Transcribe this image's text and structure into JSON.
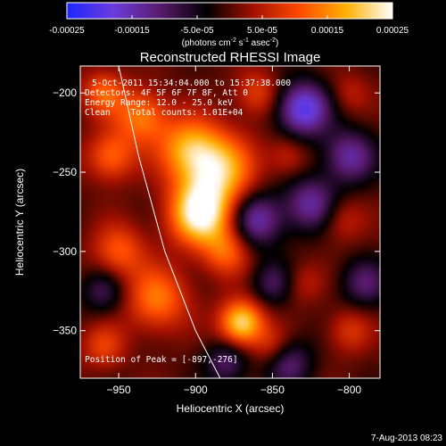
{
  "chart_data": {
    "type": "heatmap",
    "title": "Reconstructed RHESSI Image",
    "xlabel": "Heliocentric X (arcsec)",
    "ylabel": "Heliocentric Y (arcsec)",
    "xlim": [
      -975,
      -780
    ],
    "ylim": [
      -380,
      -183
    ],
    "x_ticks": [
      -950,
      -900,
      -850,
      -800
    ],
    "y_ticks": [
      -200,
      -250,
      -300,
      -350
    ],
    "colorbar": {
      "range": [
        -0.00025,
        0.00025
      ],
      "tick_values": [
        -0.00025,
        -0.00015,
        -5e-05,
        5e-05,
        0.00015,
        0.00025
      ],
      "tick_labels": [
        "-0.00025",
        "-0.00015",
        "-5.0e-05",
        "5.0e-05",
        "0.00015",
        "0.00025"
      ],
      "label": "(photons cm",
      "label_exp1": "-2",
      "label_mid": " s",
      "label_exp2": "-1",
      "label_tail": " asec",
      "label_exp3": "-2",
      "label_end": ")",
      "stops": [
        "#1e26ff",
        "#6a3cdc",
        "#5a1a6e",
        "#000000",
        "#a31000",
        "#ff4a00",
        "#ffb000",
        "#ffffff"
      ]
    },
    "annotations": {
      "time": "5-Oct-2011 15:34:04.000 to 15:37:38.000",
      "detectors": "Detectors: 4F 5F 6F 7F 8F, Att 0",
      "energy": "Energy Range: 12.0 - 25.0 keV",
      "method": "Clean    Total counts: 1.01E+04",
      "peak": "Position of Peak = [-897,-276]"
    },
    "limb_curve": [
      [
        -950,
        -183
      ],
      [
        -937,
        -240
      ],
      [
        -920,
        -300
      ],
      [
        -900,
        -350
      ],
      [
        -884,
        -380
      ]
    ],
    "sources": [
      {
        "x": -897,
        "y": -276,
        "a": 1.0,
        "s": 14
      },
      {
        "x": -885,
        "y": -248,
        "a": 0.75,
        "s": 16
      },
      {
        "x": -905,
        "y": -235,
        "a": 0.6,
        "s": 14
      },
      {
        "x": -935,
        "y": -215,
        "a": 0.55,
        "s": 12
      },
      {
        "x": -955,
        "y": -240,
        "a": 0.5,
        "s": 11
      },
      {
        "x": -960,
        "y": -200,
        "a": 0.45,
        "s": 10
      },
      {
        "x": -925,
        "y": -330,
        "a": 0.55,
        "s": 14
      },
      {
        "x": -950,
        "y": -300,
        "a": 0.45,
        "s": 12
      },
      {
        "x": -870,
        "y": -345,
        "a": 0.9,
        "s": 10
      },
      {
        "x": -880,
        "y": -300,
        "a": 0.45,
        "s": 11
      },
      {
        "x": -960,
        "y": -360,
        "a": 0.35,
        "s": 10
      },
      {
        "x": -860,
        "y": -200,
        "a": 0.35,
        "s": 10
      },
      {
        "x": -840,
        "y": -240,
        "a": 0.25,
        "s": 9
      },
      {
        "x": -850,
        "y": -360,
        "a": 0.3,
        "s": 9
      },
      {
        "x": -800,
        "y": -350,
        "a": 0.3,
        "s": 10
      },
      {
        "x": -805,
        "y": -280,
        "a": 0.25,
        "s": 10
      },
      {
        "x": -800,
        "y": -200,
        "a": 0.2,
        "s": 9
      },
      {
        "x": -830,
        "y": -320,
        "a": 0.2,
        "s": 9
      }
    ],
    "negatives": [
      {
        "x": -830,
        "y": -210,
        "a": -0.8,
        "s": 12
      },
      {
        "x": -825,
        "y": -270,
        "a": -0.55,
        "s": 12
      },
      {
        "x": -860,
        "y": -280,
        "a": -0.6,
        "s": 12
      },
      {
        "x": -800,
        "y": -240,
        "a": -0.55,
        "s": 12
      },
      {
        "x": -840,
        "y": -370,
        "a": -0.45,
        "s": 11
      },
      {
        "x": -790,
        "y": -320,
        "a": -0.4,
        "s": 11
      },
      {
        "x": -880,
        "y": -370,
        "a": -0.4,
        "s": 10
      },
      {
        "x": -960,
        "y": -325,
        "a": -0.35,
        "s": 10
      },
      {
        "x": -850,
        "y": -320,
        "a": -0.35,
        "s": 10
      }
    ]
  },
  "footer": {
    "date": "7-Aug-2013 08:23"
  }
}
